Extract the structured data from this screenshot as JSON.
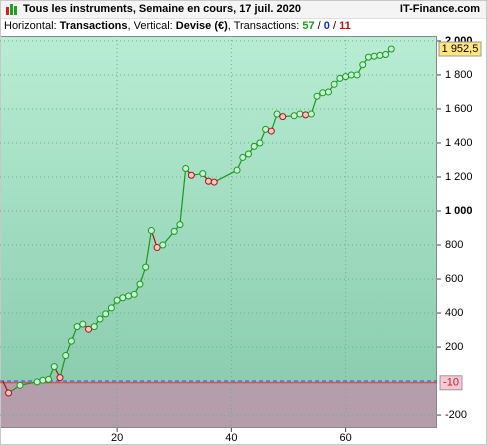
{
  "header": {
    "title": "Tous les instruments, Semaine en cours, 17 juil. 2020",
    "source": "IT-Finance.com"
  },
  "subtitle": {
    "h_label": "Horizontal: ",
    "h_value": "Transactions",
    "v_label": ", Vertical: ",
    "v_value": "Devise (€)",
    "count_label": ", Transactions: ",
    "wins": 57,
    "sep": " / ",
    "even": 0,
    "losses": 11
  },
  "chart_data": {
    "type": "line",
    "x": [
      0,
      1,
      3,
      6,
      7,
      8,
      9,
      10,
      11,
      12,
      13,
      14,
      15,
      16,
      17,
      18,
      19,
      20,
      21,
      22,
      23,
      24,
      25,
      26,
      27,
      28,
      30,
      31,
      32,
      33,
      35,
      36,
      37,
      41,
      42,
      43,
      44,
      45,
      46,
      47,
      48,
      49,
      51,
      52,
      53,
      54,
      55,
      56,
      57,
      58,
      59,
      60,
      61,
      62,
      63,
      64,
      65,
      66,
      67,
      68
    ],
    "values": [
      0,
      -70,
      -25,
      -5,
      5,
      10,
      85,
      20,
      150,
      235,
      320,
      335,
      305,
      320,
      365,
      395,
      430,
      475,
      490,
      500,
      510,
      570,
      670,
      885,
      785,
      800,
      880,
      920,
      1250,
      1210,
      1220,
      1175,
      1170,
      1240,
      1315,
      1335,
      1380,
      1400,
      1480,
      1470,
      1570,
      1555,
      1560,
      1570,
      1565,
      1570,
      1675,
      1695,
      1700,
      1745,
      1780,
      1790,
      1800,
      1800,
      1860,
      1905,
      1910,
      1915,
      1920,
      1952.5
    ],
    "last_label": "1 952,5",
    "up_color": "#1a9a1a",
    "down_color": "#b01010",
    "reference": {
      "value": -10,
      "label": "-10"
    },
    "xlim": [
      -0.5,
      76
    ],
    "xticks": [
      20,
      40,
      60
    ],
    "ylim": [
      -276,
      2029
    ],
    "yticks": [
      {
        "value": 2000,
        "label": "2 000"
      },
      {
        "value": 1800,
        "label": "1 800"
      },
      {
        "value": 1600,
        "label": "1 600"
      },
      {
        "value": 1400,
        "label": "1 400"
      },
      {
        "value": 1200,
        "label": "1 200"
      },
      {
        "value": 1000,
        "label": "1 000"
      },
      800,
      600,
      400,
      200,
      -200
    ],
    "grid": true
  }
}
